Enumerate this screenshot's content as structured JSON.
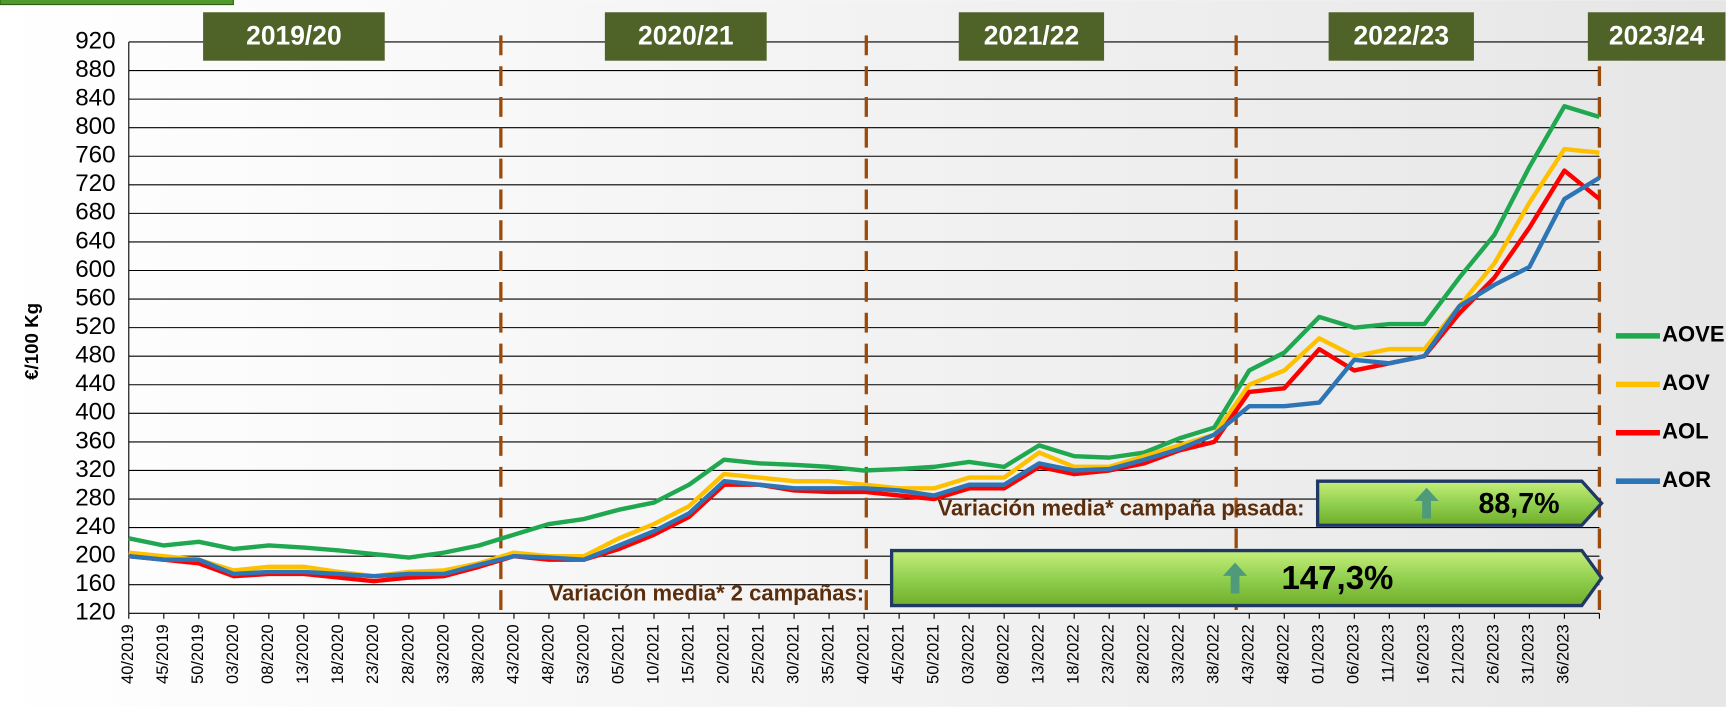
{
  "chart_data": {
    "type": "line",
    "y_label": "€/100 Kg",
    "seasons": [
      "2019/20",
      "2020/21",
      "2021/22",
      "2022/23",
      "2023/24"
    ],
    "categories": [
      "40/2019",
      "45/2019",
      "50/2019",
      "03/2020",
      "08/2020",
      "13/2020",
      "18/2020",
      "23/2020",
      "28/2020",
      "33/2020",
      "38/2020",
      "43/2020",
      "48/2020",
      "53/2020",
      "05/2021",
      "10/2021",
      "15/2021",
      "20/2021",
      "25/2021",
      "30/2021",
      "35/2021",
      "40/2021",
      "45/2021",
      "50/2021",
      "03/2022",
      "08/2022",
      "13/2022",
      "18/2022",
      "23/2022",
      "28/2022",
      "33/2022",
      "38/2022",
      "43/2022",
      "48/2022",
      "01/2023",
      "06/2023",
      "11/2023",
      "16/2023",
      "21/2023",
      "26/2023",
      "31/2023",
      "36/2023",
      null
    ],
    "series": [
      {
        "name": "AOVE",
        "color": "#1fa84f",
        "values": [
          225,
          215,
          220,
          210,
          215,
          212,
          208,
          203,
          198,
          205,
          215,
          230,
          245,
          252,
          265,
          275,
          300,
          335,
          330,
          328,
          325,
          320,
          322,
          325,
          332,
          325,
          355,
          340,
          338,
          345,
          365,
          380,
          460,
          485,
          535,
          520,
          525,
          525,
          590,
          650,
          745,
          830,
          815
        ]
      },
      {
        "name": "AOV",
        "color": "#ffc000",
        "values": [
          205,
          200,
          195,
          180,
          185,
          185,
          178,
          172,
          178,
          180,
          190,
          205,
          200,
          200,
          225,
          245,
          270,
          315,
          310,
          305,
          305,
          300,
          295,
          295,
          310,
          310,
          345,
          325,
          325,
          340,
          355,
          370,
          440,
          460,
          505,
          480,
          490,
          490,
          550,
          610,
          695,
          770,
          765
        ]
      },
      {
        "name": "AOL",
        "color": "#ff0000",
        "values": [
          200,
          195,
          190,
          172,
          175,
          175,
          170,
          165,
          170,
          172,
          185,
          200,
          195,
          195,
          210,
          230,
          255,
          300,
          300,
          292,
          290,
          290,
          285,
          280,
          295,
          295,
          325,
          315,
          320,
          330,
          348,
          360,
          430,
          435,
          490,
          460,
          470,
          480,
          540,
          590,
          660,
          740,
          700
        ]
      },
      {
        "name": "AOR",
        "color": "#2e75b6",
        "values": [
          200,
          195,
          195,
          175,
          178,
          178,
          175,
          172,
          175,
          175,
          188,
          200,
          198,
          195,
          215,
          235,
          260,
          305,
          300,
          295,
          295,
          295,
          292,
          285,
          300,
          300,
          330,
          320,
          322,
          335,
          350,
          370,
          410,
          410,
          415,
          475,
          470,
          480,
          550,
          580,
          605,
          700,
          730
        ]
      }
    ],
    "ylim": [
      120,
      920
    ],
    "yticks": [
      120,
      160,
      200,
      240,
      280,
      320,
      360,
      400,
      440,
      480,
      520,
      560,
      600,
      640,
      680,
      720,
      760,
      800,
      840,
      880,
      920
    ],
    "grid": true,
    "legend": "right",
    "annotations": [
      {
        "label": "Variación media* campaña pasada:",
        "value_label": "88,7%"
      },
      {
        "label": "Variación media* 2 campañas:",
        "value_label": "147,3%"
      }
    ]
  }
}
